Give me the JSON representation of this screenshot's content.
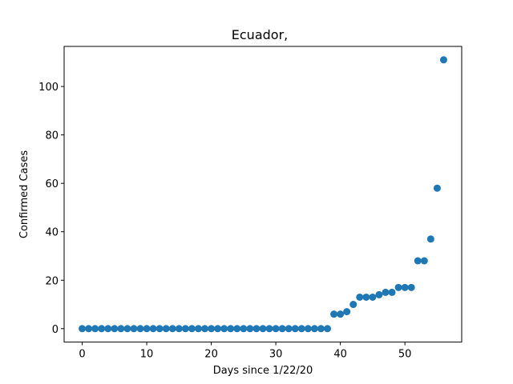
{
  "chart_data": {
    "type": "scatter",
    "title": "Ecuador,",
    "xlabel": "Days since 1/22/20",
    "ylabel": "Confirmed Cases",
    "xlim": [
      -2.8,
      58.8
    ],
    "ylim": [
      -5.55,
      116.55
    ],
    "xticks": [
      0,
      10,
      20,
      30,
      40,
      50
    ],
    "yticks": [
      0,
      20,
      40,
      60,
      80,
      100
    ],
    "grid": false,
    "marker_color": "#1f77b4",
    "series": [
      {
        "name": "Confirmed Cases",
        "x": [
          0,
          1,
          2,
          3,
          4,
          5,
          6,
          7,
          8,
          9,
          10,
          11,
          12,
          13,
          14,
          15,
          16,
          17,
          18,
          19,
          20,
          21,
          22,
          23,
          24,
          25,
          26,
          27,
          28,
          29,
          30,
          31,
          32,
          33,
          34,
          35,
          36,
          37,
          38,
          39,
          40,
          41,
          42,
          43,
          44,
          45,
          46,
          47,
          48,
          49,
          50,
          51,
          52,
          53,
          54,
          55,
          56
        ],
        "y": [
          0,
          0,
          0,
          0,
          0,
          0,
          0,
          0,
          0,
          0,
          0,
          0,
          0,
          0,
          0,
          0,
          0,
          0,
          0,
          0,
          0,
          0,
          0,
          0,
          0,
          0,
          0,
          0,
          0,
          0,
          0,
          0,
          0,
          0,
          0,
          0,
          0,
          0,
          0,
          6,
          6,
          7,
          10,
          13,
          13,
          13,
          14,
          15,
          15,
          17,
          17,
          17,
          28,
          28,
          37,
          58,
          111
        ]
      }
    ]
  }
}
